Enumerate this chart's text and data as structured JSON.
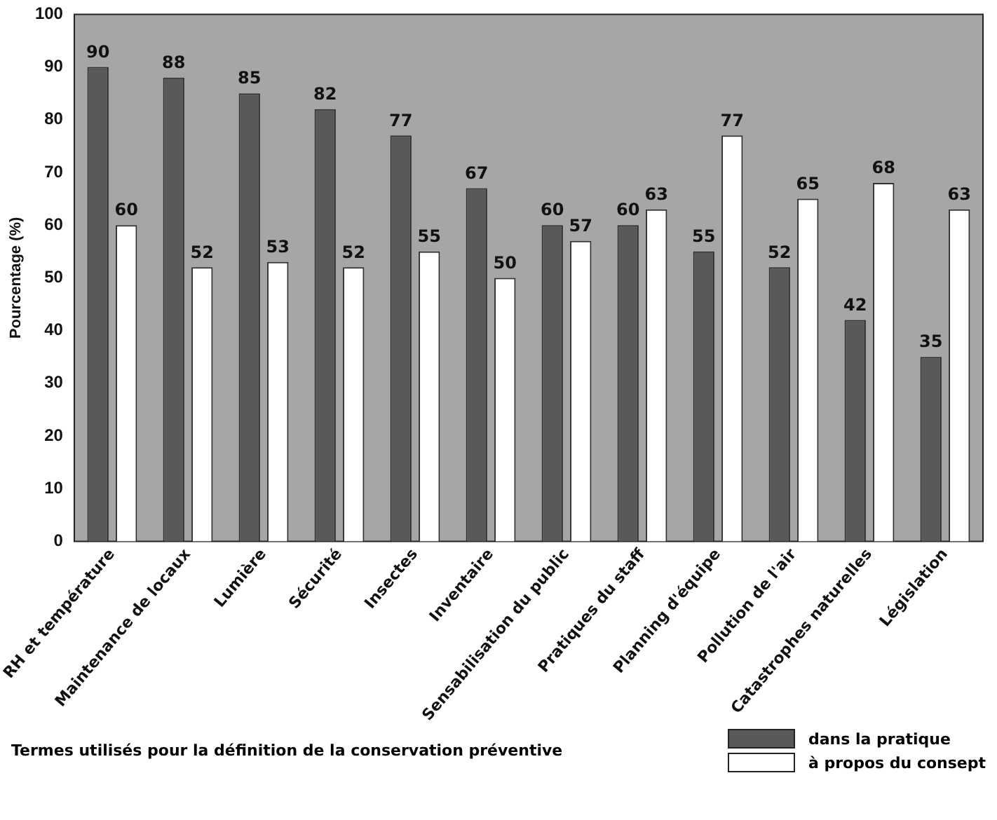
{
  "chart_data": {
    "type": "bar",
    "ylabel": "Pourcentage (%)",
    "legend_title": "Termes utilisés pour la définition de la conservation préventive",
    "categories": [
      "RH et température",
      "Maintenance de locaux",
      "Lumière",
      "Sécurité",
      "Insectes",
      "Inventaire",
      "Sensabilisation du public",
      "Pratiques du staff",
      "Planning d'équipe",
      "Pollution de l'air",
      "Catastrophes naturelles",
      "Législation"
    ],
    "series": [
      {
        "name": "dans la pratique",
        "color": "#595959",
        "values": [
          90,
          88,
          85,
          82,
          77,
          67,
          60,
          60,
          55,
          52,
          42,
          35
        ]
      },
      {
        "name": "à propos du consept",
        "color": "#ffffff",
        "values": [
          60,
          52,
          53,
          52,
          55,
          50,
          57,
          63,
          77,
          65,
          68,
          63
        ]
      }
    ],
    "ylim": [
      0,
      100
    ],
    "yticks": [
      0,
      10,
      20,
      30,
      40,
      50,
      60,
      70,
      80,
      90,
      100
    ],
    "grid": false,
    "legend": "bottom",
    "data_labels": true
  }
}
